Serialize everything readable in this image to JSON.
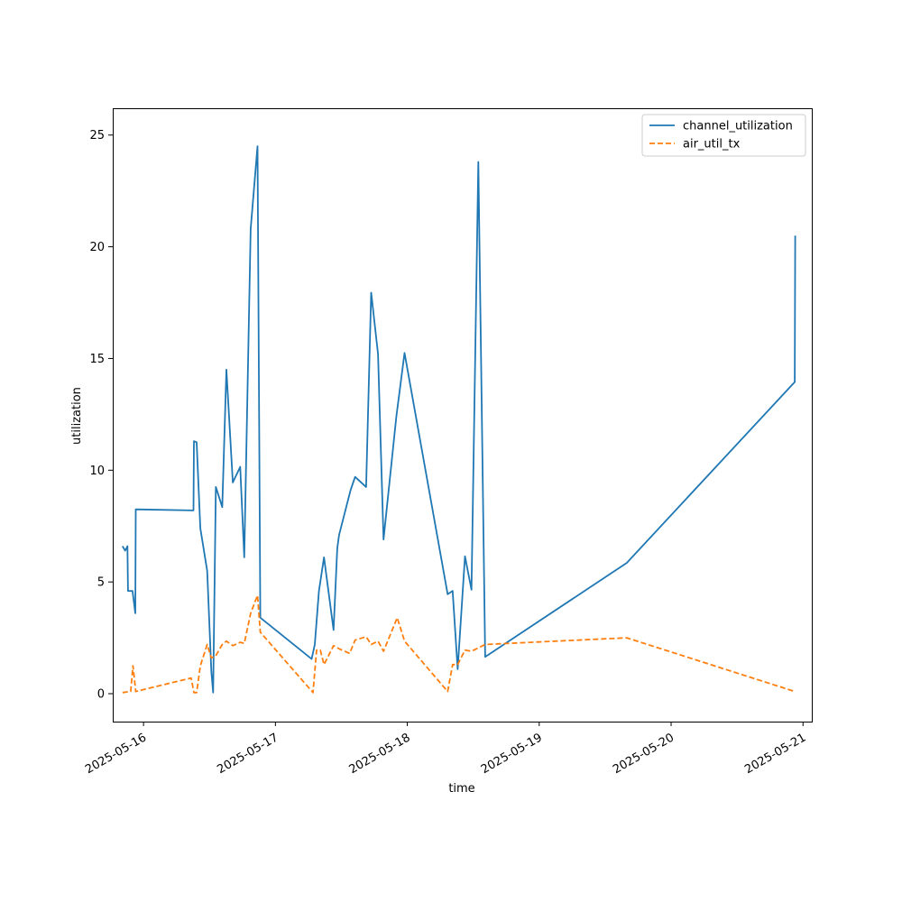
{
  "chart_data": {
    "type": "line",
    "title": "",
    "xlabel": "time",
    "ylabel": "utilization",
    "xlim": [
      "2025-05-15 18:24",
      "2025-05-21 01:36"
    ],
    "ylim": [
      -1.25,
      26.2
    ],
    "grid": false,
    "legend_position": "top-right",
    "x_ticks": [
      "2025-05-16",
      "2025-05-17",
      "2025-05-18",
      "2025-05-19",
      "2025-05-20",
      "2025-05-21"
    ],
    "y_ticks": [
      0,
      5,
      10,
      15,
      20,
      25
    ],
    "series": [
      {
        "name": "channel_utilization",
        "color": "#1f77b4",
        "dash": "solid",
        "points": [
          [
            "2025-05-15 20:10",
            6.6
          ],
          [
            "2025-05-15 20:40",
            6.4
          ],
          [
            "2025-05-15 21:05",
            6.6
          ],
          [
            "2025-05-15 21:10",
            4.6
          ],
          [
            "2025-05-15 21:40",
            4.6
          ],
          [
            "2025-05-15 22:00",
            4.6
          ],
          [
            "2025-05-15 22:30",
            3.6
          ],
          [
            "2025-05-15 22:35",
            8.25
          ],
          [
            "2025-05-16 09:05",
            8.2
          ],
          [
            "2025-05-16 09:10",
            11.3
          ],
          [
            "2025-05-16 09:40",
            11.25
          ],
          [
            "2025-05-16 10:20",
            7.4
          ],
          [
            "2025-05-16 11:35",
            5.5
          ],
          [
            "2025-05-16 12:20",
            1.0
          ],
          [
            "2025-05-16 12:40",
            0.05
          ],
          [
            "2025-05-16 13:10",
            9.25
          ],
          [
            "2025-05-16 14:20",
            8.35
          ],
          [
            "2025-05-16 15:05",
            14.5
          ],
          [
            "2025-05-16 16:15",
            9.45
          ],
          [
            "2025-05-16 17:35",
            10.15
          ],
          [
            "2025-05-16 18:20",
            6.1
          ],
          [
            "2025-05-16 19:30",
            20.8
          ],
          [
            "2025-05-16 20:45",
            24.5
          ],
          [
            "2025-05-16 21:15",
            3.4
          ],
          [
            "2025-05-17 06:35",
            1.55
          ],
          [
            "2025-05-17 07:10",
            2.2
          ],
          [
            "2025-05-17 07:55",
            4.6
          ],
          [
            "2025-05-17 08:50",
            6.1
          ],
          [
            "2025-05-17 10:35",
            2.85
          ],
          [
            "2025-05-17 11:15",
            6.5
          ],
          [
            "2025-05-17 11:35",
            7.1
          ],
          [
            "2025-05-17 13:40",
            9.1
          ],
          [
            "2025-05-17 14:30",
            9.7
          ],
          [
            "2025-05-17 16:30",
            9.25
          ],
          [
            "2025-05-17 17:25",
            17.95
          ],
          [
            "2025-05-17 18:40",
            15.2
          ],
          [
            "2025-05-17 19:40",
            6.9
          ],
          [
            "2025-05-17 22:00",
            12.4
          ],
          [
            "2025-05-17 23:30",
            15.25
          ],
          [
            "2025-05-18 07:20",
            4.45
          ],
          [
            "2025-05-18 08:15",
            4.6
          ],
          [
            "2025-05-18 09:10",
            1.1
          ],
          [
            "2025-05-18 10:30",
            6.15
          ],
          [
            "2025-05-18 11:40",
            4.65
          ],
          [
            "2025-05-18 12:55",
            23.8
          ],
          [
            "2025-05-18 14:10",
            1.65
          ],
          [
            "2025-05-19 15:55",
            5.85
          ],
          [
            "2025-05-20 22:30",
            13.95
          ],
          [
            "2025-05-20 22:35",
            20.5
          ]
        ]
      },
      {
        "name": "air_util_tx",
        "color": "#ff7f0e",
        "dash": "dashed",
        "points": [
          [
            "2025-05-15 20:10",
            0.05
          ],
          [
            "2025-05-15 21:40",
            0.1
          ],
          [
            "2025-05-15 22:05",
            1.25
          ],
          [
            "2025-05-15 22:35",
            0.1
          ],
          [
            "2025-05-16 08:40",
            0.7
          ],
          [
            "2025-05-16 09:10",
            0.05
          ],
          [
            "2025-05-16 09:40",
            0.05
          ],
          [
            "2025-05-16 10:20",
            1.25
          ],
          [
            "2025-05-16 11:35",
            2.2
          ],
          [
            "2025-05-16 12:20",
            1.6
          ],
          [
            "2025-05-16 13:10",
            1.7
          ],
          [
            "2025-05-16 14:20",
            2.2
          ],
          [
            "2025-05-16 15:05",
            2.35
          ],
          [
            "2025-05-16 16:15",
            2.15
          ],
          [
            "2025-05-16 17:35",
            2.3
          ],
          [
            "2025-05-16 18:20",
            2.25
          ],
          [
            "2025-05-16 19:30",
            3.6
          ],
          [
            "2025-05-16 20:45",
            4.4
          ],
          [
            "2025-05-16 21:15",
            2.75
          ],
          [
            "2025-05-17 06:50",
            0.05
          ],
          [
            "2025-05-17 07:30",
            1.95
          ],
          [
            "2025-05-17 08:10",
            1.95
          ],
          [
            "2025-05-17 08:50",
            1.3
          ],
          [
            "2025-05-17 10:35",
            2.15
          ],
          [
            "2025-05-17 11:40",
            2.0
          ],
          [
            "2025-05-17 13:30",
            1.8
          ],
          [
            "2025-05-17 14:30",
            2.4
          ],
          [
            "2025-05-17 16:30",
            2.55
          ],
          [
            "2025-05-17 17:25",
            2.2
          ],
          [
            "2025-05-17 18:40",
            2.35
          ],
          [
            "2025-05-17 19:40",
            1.9
          ],
          [
            "2025-05-17 22:10",
            3.4
          ],
          [
            "2025-05-17 23:30",
            2.35
          ],
          [
            "2025-05-18 07:20",
            0.1
          ],
          [
            "2025-05-18 08:15",
            1.3
          ],
          [
            "2025-05-18 09:10",
            1.3
          ],
          [
            "2025-05-18 10:30",
            1.95
          ],
          [
            "2025-05-18 11:40",
            1.9
          ],
          [
            "2025-05-18 14:10",
            2.2
          ],
          [
            "2025-05-19 15:55",
            2.5
          ],
          [
            "2025-05-20 22:30",
            0.1
          ]
        ]
      }
    ]
  }
}
